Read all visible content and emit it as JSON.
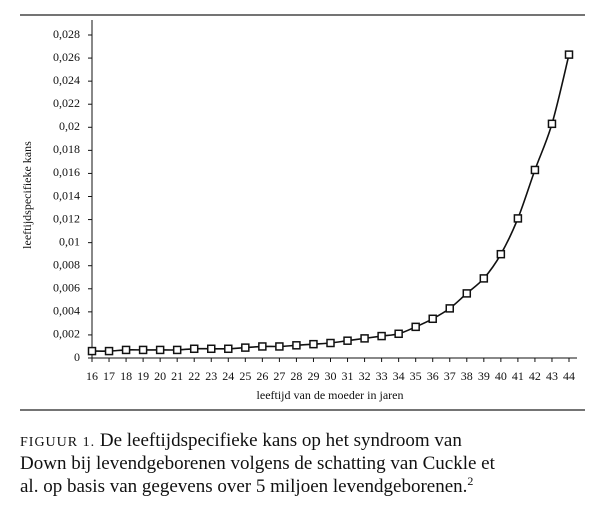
{
  "chart_data": {
    "type": "line",
    "xlabel": "leeftijd van de moeder in jaren",
    "ylabel": "leeftijdspecifieke kans",
    "x": [
      16,
      17,
      18,
      19,
      20,
      21,
      22,
      23,
      24,
      25,
      26,
      27,
      28,
      29,
      30,
      31,
      32,
      33,
      34,
      35,
      36,
      37,
      38,
      39,
      40,
      41,
      42,
      43,
      44
    ],
    "series": [
      {
        "color": "#111111",
        "values": [
          0.0006,
          0.0006,
          0.0007,
          0.0007,
          0.0007,
          0.0007,
          0.0008,
          0.0008,
          0.0008,
          0.0009,
          0.001,
          0.001,
          0.0011,
          0.0012,
          0.0013,
          0.0015,
          0.0017,
          0.0019,
          0.0021,
          0.0027,
          0.0034,
          0.0043,
          0.0056,
          0.0069,
          0.009,
          0.0121,
          0.0163,
          0.0203,
          0.0263
        ]
      }
    ],
    "xlim": [
      16,
      44
    ],
    "xticks": [
      16,
      17,
      18,
      19,
      20,
      21,
      22,
      23,
      24,
      25,
      26,
      27,
      28,
      29,
      30,
      31,
      32,
      33,
      34,
      35,
      36,
      37,
      38,
      39,
      40,
      41,
      42,
      43,
      44
    ],
    "ylim": [
      0,
      0.028
    ],
    "yticks": [
      0,
      {
        "value": 0.002,
        "label": "0,002"
      },
      {
        "value": 0.004,
        "label": "0,004"
      },
      {
        "value": 0.006,
        "label": "0,006"
      },
      {
        "value": 0.008,
        "label": "0,008"
      },
      {
        "value": 0.01,
        "label": "0,01"
      },
      {
        "value": 0.012,
        "label": "0,012"
      },
      {
        "value": 0.014,
        "label": "0,014"
      },
      {
        "value": 0.016,
        "label": "0,016"
      },
      {
        "value": 0.018,
        "label": "0,018"
      },
      {
        "value": 0.02,
        "label": "0,02"
      },
      {
        "value": 0.022,
        "label": "0,022"
      },
      {
        "value": 0.024,
        "label": "0,024"
      },
      {
        "value": 0.026,
        "label": "0,026"
      },
      {
        "value": 0.028,
        "label": "0,028"
      }
    ],
    "marker": "square"
  },
  "caption": {
    "label": "FIGUUR 1.",
    "lines": [
      "De leeftijdspecifieke kans op het syndroom van",
      "Down bij levendgeborenen volgens de schatting van Cuckle et",
      "al. op basis van gegevens over 5 miljoen levendgeborenen."
    ],
    "reference": "2"
  }
}
